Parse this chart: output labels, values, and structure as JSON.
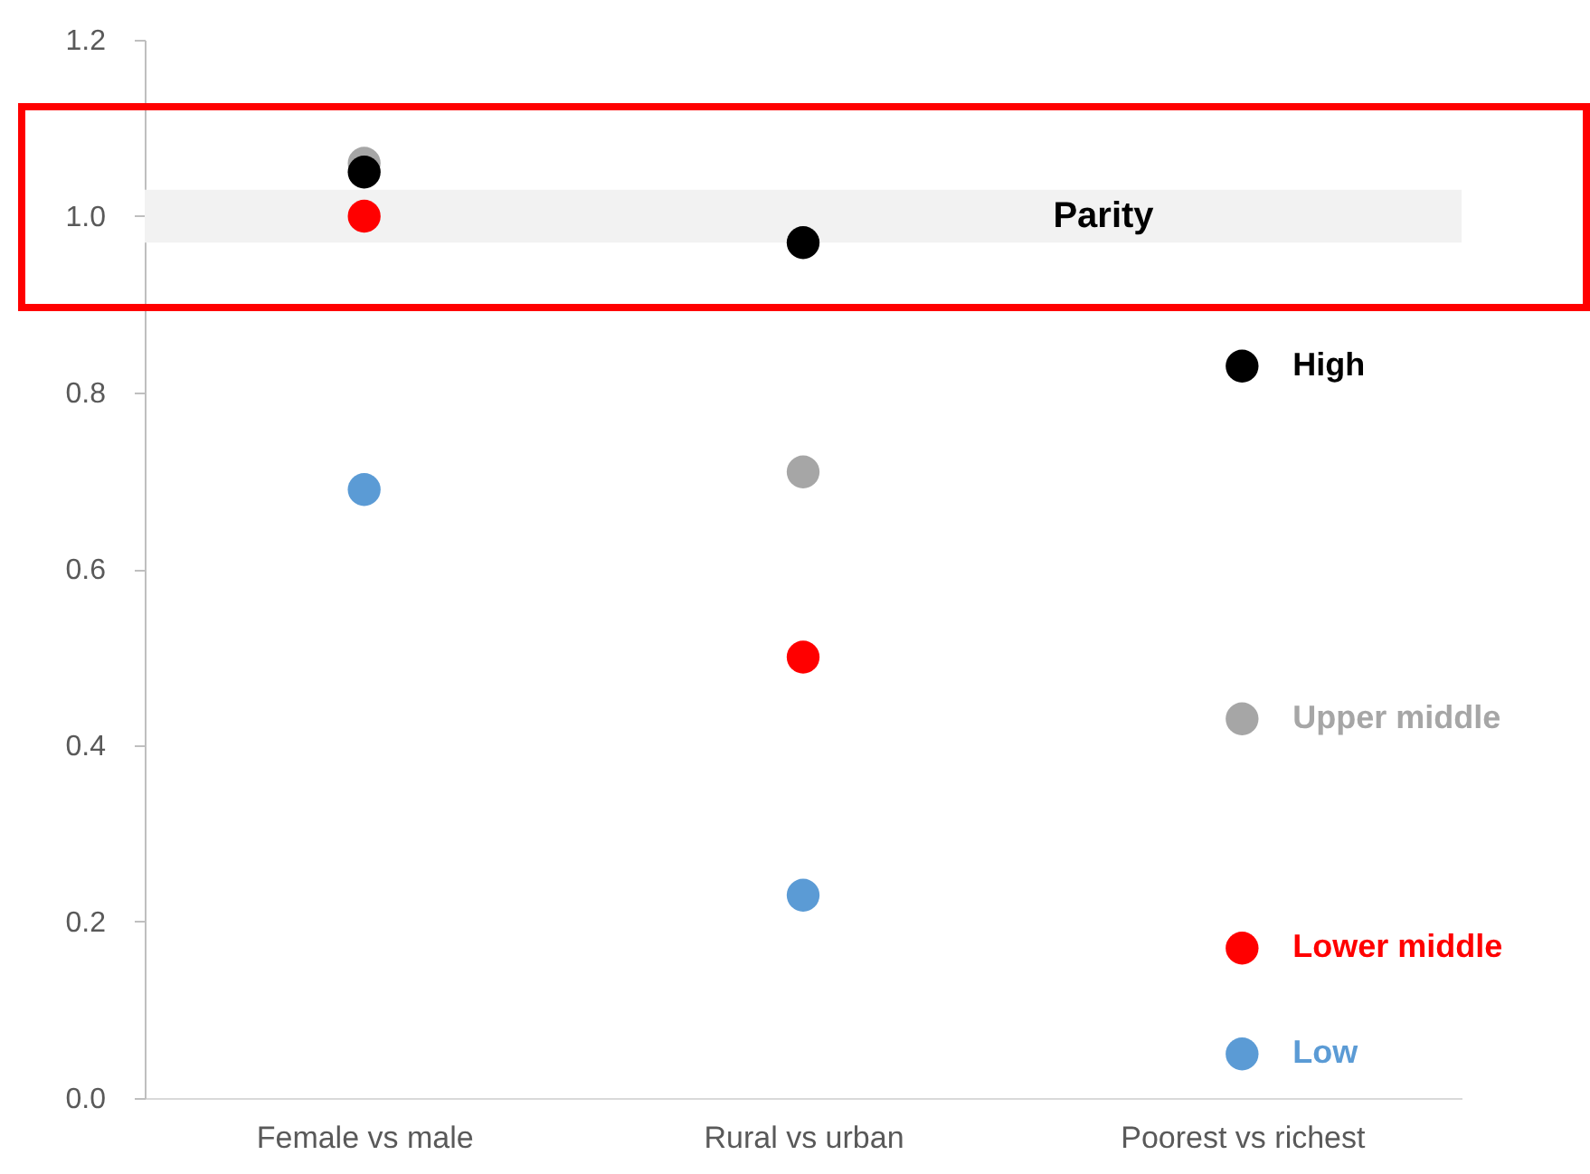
{
  "chart_data": {
    "type": "scatter",
    "categories": [
      "Female vs male",
      "Rural vs urban",
      "Poorest vs richest"
    ],
    "series": [
      {
        "name": "Upper middle",
        "color": "#a6a6a6",
        "values": [
          1.06,
          0.71,
          0.43
        ]
      },
      {
        "name": "High",
        "color": "#000000",
        "values": [
          1.05,
          0.97,
          0.83
        ]
      },
      {
        "name": "Lower middle",
        "color": "#ff0000",
        "values": [
          1.0,
          0.5,
          0.17
        ]
      },
      {
        "name": "Low",
        "color": "#5b9bd5",
        "values": [
          0.69,
          0.23,
          0.05
        ]
      }
    ],
    "ylim": [
      0,
      1.2
    ],
    "yticks": [
      {
        "value": 0,
        "label": "0.0"
      },
      0.2,
      0.4,
      0.6,
      0.8,
      {
        "value": 1,
        "label": "1.0"
      },
      1.2
    ],
    "bands": [
      {
        "axis": "y",
        "from": 0.97,
        "to": 1.03,
        "label": "Parity",
        "color": "#f2f2f2"
      }
    ],
    "marker": "circle"
  }
}
